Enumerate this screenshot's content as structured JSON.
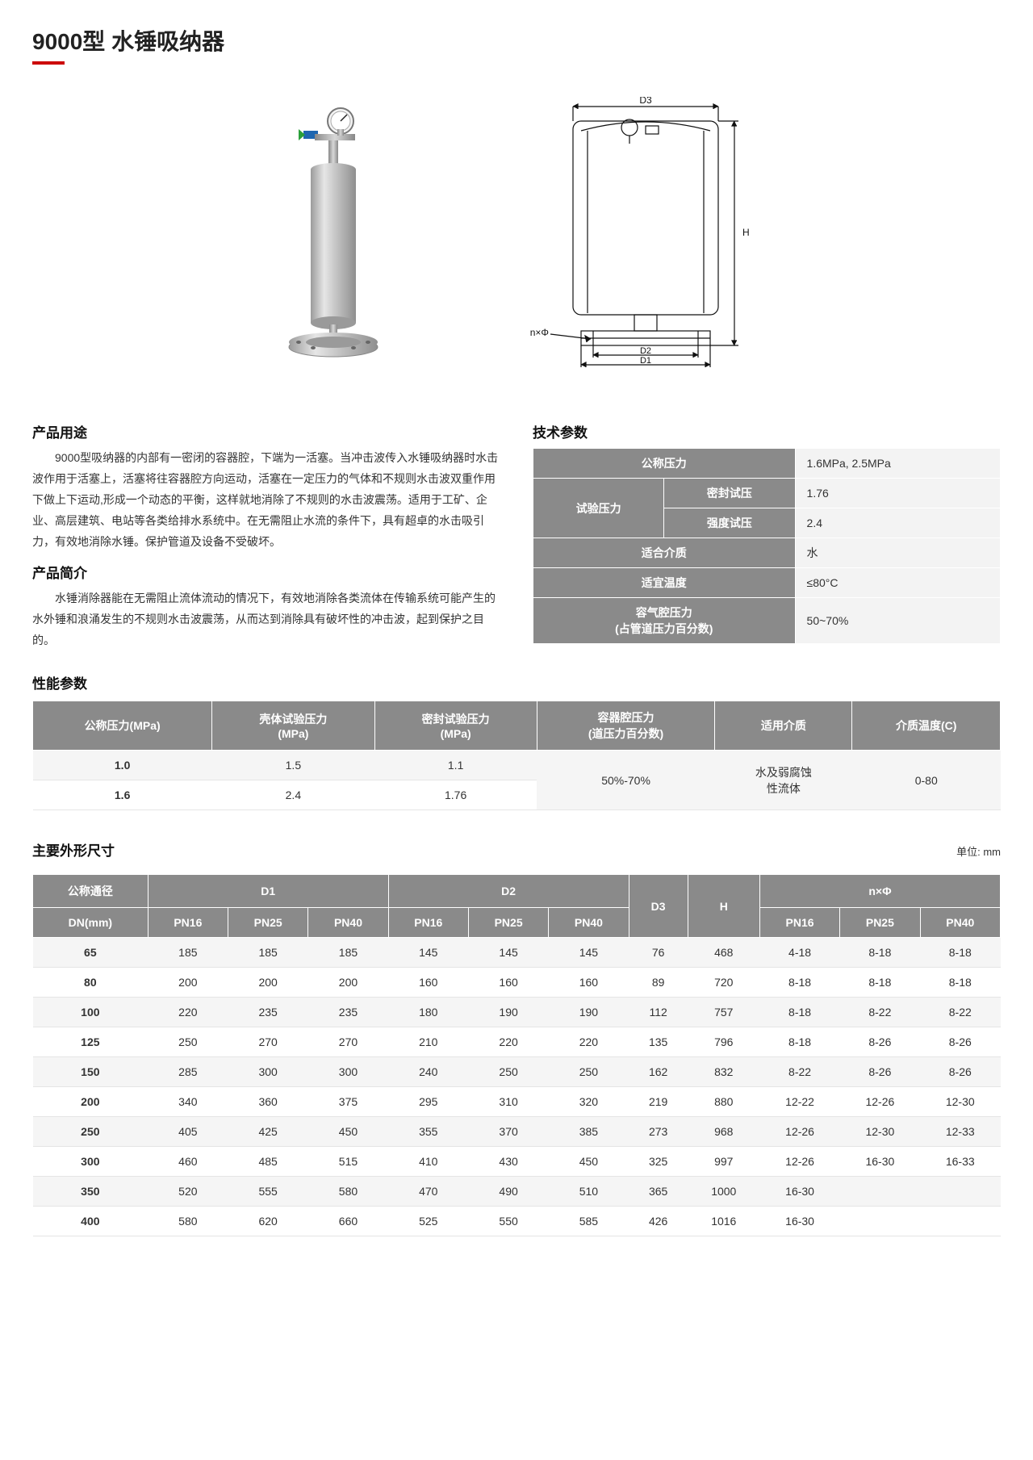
{
  "title_model": "9000",
  "title_suffix": "型 水锤吸纳器",
  "sections": {
    "usage_h": "产品用途",
    "usage_p": "9000型吸纳器的内部有一密闭的容器腔，下端为一活塞。当冲击波传入水锤吸纳器时水击波作用于活塞上，活塞将往容器腔方向运动，活塞在一定压力的气体和不规则水击波双重作用下做上下运动,形成一个动态的平衡，这样就地消除了不规则的水击波震荡。适用于工矿、企业、高层建筑、电站等各类给排水系统中。在无需阻止水流的条件下，具有超卓的水击吸引力，有效地消除水锤。保护管道及设备不受破坏。",
    "intro_h": "产品简介",
    "intro_p": "水锤消除器能在无需阻止流体流动的情况下，有效地消除各类流体在传输系统可能产生的水外锤和浪涌发生的不规则水击波震荡，从而达到消除具有破坏性的冲击波，起到保护之目的。",
    "tech_h": "技术参数",
    "perf_h": "性能参数",
    "dims_h": "主要外形尺寸",
    "dims_unit": "单位: mm"
  },
  "tech_params": {
    "rows": [
      {
        "label": "公称压力",
        "value": "1.6MPa, 2.5MPa"
      },
      {
        "label_group": "试验压力",
        "sub": "密封试压",
        "value": "1.76"
      },
      {
        "sub": "强度试压",
        "value": "2.4"
      },
      {
        "label": "适合介质",
        "value": "水"
      },
      {
        "label": "适宜温度",
        "value": "≤80°C"
      },
      {
        "label": "容气腔压力\n(占管道压力百分数)",
        "value": "50~70%"
      }
    ]
  },
  "perf_table": {
    "columns": [
      "公称压力(MPa)",
      "壳体试验压力\n(MPa)",
      "密封试验压力\n(MPa)",
      "容器腔压力\n(道压力百分数)",
      "适用介质",
      "介质温度(C)"
    ],
    "rows": [
      [
        "1.0",
        "1.5",
        "1.1",
        "50%-70%",
        "水及弱腐蚀\n性流体",
        "0-80"
      ],
      [
        "1.6",
        "2.4",
        "1.76",
        "",
        "",
        ""
      ]
    ],
    "merge_note": "cols 3-5 span both rows"
  },
  "dims_table": {
    "group_headers": [
      "公称通径",
      "D1",
      "D2",
      "D3",
      "H",
      "n×Φ"
    ],
    "sub_headers": [
      "DN(mm)",
      "PN16",
      "PN25",
      "PN40",
      "PN16",
      "PN25",
      "PN40",
      "",
      "",
      "PN16",
      "PN25",
      "PN40"
    ],
    "rows": [
      [
        "65",
        "185",
        "185",
        "185",
        "145",
        "145",
        "145",
        "76",
        "468",
        "4-18",
        "8-18",
        "8-18"
      ],
      [
        "80",
        "200",
        "200",
        "200",
        "160",
        "160",
        "160",
        "89",
        "720",
        "8-18",
        "8-18",
        "8-18"
      ],
      [
        "100",
        "220",
        "235",
        "235",
        "180",
        "190",
        "190",
        "112",
        "757",
        "8-18",
        "8-22",
        "8-22"
      ],
      [
        "125",
        "250",
        "270",
        "270",
        "210",
        "220",
        "220",
        "135",
        "796",
        "8-18",
        "8-26",
        "8-26"
      ],
      [
        "150",
        "285",
        "300",
        "300",
        "240",
        "250",
        "250",
        "162",
        "832",
        "8-22",
        "8-26",
        "8-26"
      ],
      [
        "200",
        "340",
        "360",
        "375",
        "295",
        "310",
        "320",
        "219",
        "880",
        "12-22",
        "12-26",
        "12-30"
      ],
      [
        "250",
        "405",
        "425",
        "450",
        "355",
        "370",
        "385",
        "273",
        "968",
        "12-26",
        "12-30",
        "12-33"
      ],
      [
        "300",
        "460",
        "485",
        "515",
        "410",
        "430",
        "450",
        "325",
        "997",
        "12-26",
        "16-30",
        "16-33"
      ],
      [
        "350",
        "520",
        "555",
        "580",
        "470",
        "490",
        "510",
        "365",
        "1000",
        "16-30",
        "",
        ""
      ],
      [
        "400",
        "580",
        "620",
        "660",
        "525",
        "550",
        "585",
        "426",
        "1016",
        "16-30",
        "",
        ""
      ]
    ]
  },
  "diagram_labels": {
    "d3": "D3",
    "h": "H",
    "nphi": "n×Φ",
    "d2": "D2",
    "d1": "D1"
  },
  "colors": {
    "accent_red": "#c00",
    "table_header_bg": "#8a8a8a",
    "table_row_alt": "#f5f5f5",
    "stroke": "#111"
  }
}
